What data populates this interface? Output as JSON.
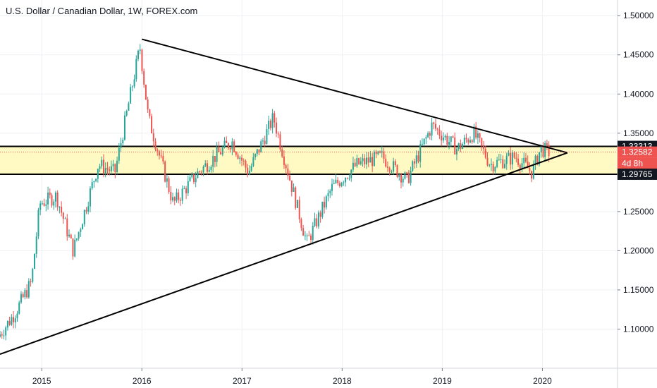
{
  "chart_title": "U.S. Dollar / Canadian Dollar, 1W, FOREX.com",
  "colors": {
    "up": "#26a69a",
    "down": "#ef5350",
    "zone_fill": "#fff9c4",
    "zone_line": "#000000",
    "trendline": "#000000",
    "grid": "#eef0f3",
    "axis_text": "#131722",
    "current_price_line": "#ef5350"
  },
  "chart_data": {
    "type": "candlestick",
    "title": "U.S. Dollar / Canadian Dollar, 1W, FOREX.com",
    "interval": "1W",
    "x_axis": {
      "ticks": [
        "2015",
        "2016",
        "2017",
        "2018",
        "2019",
        "2020"
      ],
      "range": [
        "2014-08",
        "2020-10"
      ]
    },
    "y_axis": {
      "position": "right",
      "range": [
        1.05,
        1.52
      ],
      "ticks": [
        "1.50000",
        "1.45000",
        "1.40000",
        "1.35000",
        "1.30000",
        "1.25000",
        "1.20000",
        "1.15000",
        "1.10000"
      ]
    },
    "grid": true,
    "price_path": [
      {
        "date": "2014-08",
        "price": 1.09
      },
      {
        "date": "2014-10",
        "price": 1.12
      },
      {
        "date": "2014-12",
        "price": 1.16
      },
      {
        "date": "2015-01",
        "price": 1.26
      },
      {
        "date": "2015-03",
        "price": 1.27
      },
      {
        "date": "2015-05",
        "price": 1.2
      },
      {
        "date": "2015-08",
        "price": 1.31
      },
      {
        "date": "2015-10",
        "price": 1.3
      },
      {
        "date": "2016-01",
        "price": 1.46
      },
      {
        "date": "2016-02",
        "price": 1.37
      },
      {
        "date": "2016-05",
        "price": 1.26
      },
      {
        "date": "2016-08",
        "price": 1.3
      },
      {
        "date": "2016-12",
        "price": 1.34
      },
      {
        "date": "2017-02",
        "price": 1.3
      },
      {
        "date": "2017-05",
        "price": 1.37
      },
      {
        "date": "2017-09",
        "price": 1.21
      },
      {
        "date": "2017-12",
        "price": 1.28
      },
      {
        "date": "2018-03",
        "price": 1.31
      },
      {
        "date": "2018-06",
        "price": 1.32
      },
      {
        "date": "2018-09",
        "price": 1.29
      },
      {
        "date": "2018-12",
        "price": 1.36
      },
      {
        "date": "2019-03",
        "price": 1.33
      },
      {
        "date": "2019-05",
        "price": 1.35
      },
      {
        "date": "2019-07",
        "price": 1.31
      },
      {
        "date": "2019-10",
        "price": 1.32
      },
      {
        "date": "2019-12",
        "price": 1.3
      },
      {
        "date": "2020-01",
        "price": 1.33
      },
      {
        "date": "2020-02",
        "price": 1.3258
      }
    ],
    "zone": {
      "upper": 1.33313,
      "lower": 1.29765
    },
    "trendlines": [
      {
        "from": {
          "date": "2016-01",
          "price": 1.47
        },
        "to": {
          "date": "2020-04",
          "price": 1.325
        }
      },
      {
        "from": {
          "date": "2014-08",
          "price": 1.068
        },
        "to": {
          "date": "2020-04",
          "price": 1.325
        }
      }
    ],
    "price_labels": [
      {
        "text": "1.33313",
        "value": 1.33313,
        "style": "dark"
      },
      {
        "text": "1.32582",
        "value": 1.32582,
        "style": "red"
      },
      {
        "text": "4d 8h",
        "value": 1.3115,
        "style": "red-countdown"
      },
      {
        "text": "1.29765",
        "value": 1.29765,
        "style": "dark"
      }
    ]
  }
}
